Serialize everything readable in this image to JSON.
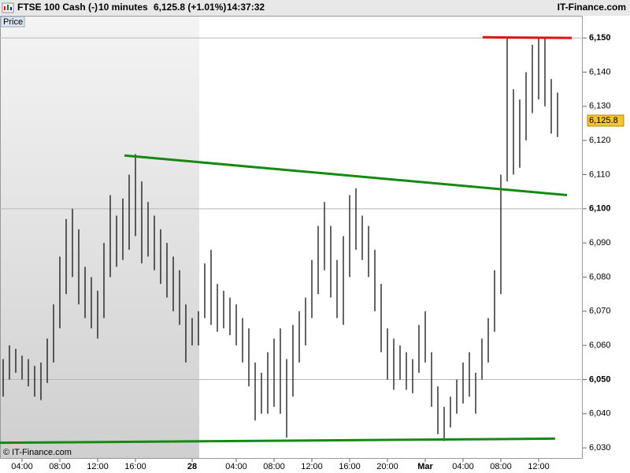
{
  "chart_data": {
    "type": "ohlc",
    "title": "FTSE 100 Cash (-)",
    "interval": "10 minutes",
    "change": "6,125.8 (+1.01%)",
    "time": "14:37:32",
    "source": "IT-Finance.com",
    "y_label": "Price",
    "copyright": "© IT-Finance.com",
    "color": "#000000",
    "categories": [
      null,
      null,
      null,
      "04:00",
      null,
      null,
      null,
      null,
      null,
      "08:00",
      null,
      null,
      null,
      null,
      null,
      "12:00",
      null,
      null,
      null,
      null,
      null,
      "16:00",
      null,
      null,
      null,
      null,
      null,
      null,
      null,
      null,
      "28",
      null,
      null,
      null,
      null,
      null,
      null,
      "04:00",
      null,
      null,
      null,
      null,
      null,
      "08:00",
      null,
      null,
      null,
      null,
      null,
      "12:00",
      null,
      null,
      null,
      null,
      null,
      "16:00",
      null,
      null,
      null,
      null,
      null,
      "20:00",
      null,
      null,
      null,
      null,
      null,
      "Mar",
      null,
      null,
      null,
      null,
      null,
      "04:00",
      null,
      null,
      null,
      null,
      null,
      "08:00",
      null,
      null,
      null,
      null,
      null,
      "12:00",
      null,
      null,
      null
    ],
    "high": [
      6056,
      6060,
      6059,
      6057,
      6056,
      6054,
      6055,
      6062,
      6072,
      6086,
      6097,
      6100,
      6094,
      6083,
      6080,
      6076,
      6090,
      6104,
      6098,
      6103,
      6110,
      6116,
      6108,
      6102,
      6098,
      6094,
      6090,
      6086,
      6082,
      6072,
      6068,
      6070,
      6084,
      6088,
      6078,
      6076,
      6074,
      6072,
      6068,
      6065,
      6055,
      6052,
      6058,
      6062,
      6065,
      6056,
      6066,
      6070,
      6074,
      6085,
      6095,
      6102,
      6095,
      6085,
      6092,
      6104,
      6106,
      6098,
      6095,
      6088,
      6078,
      6065,
      6062,
      6060,
      6058,
      6056,
      6066,
      6070,
      6058,
      6048,
      6042,
      6045,
      6050,
      6055,
      6058,
      6052,
      6062,
      6068,
      6082,
      6110,
      6150,
      6135,
      6132,
      6140,
      6148,
      6150,
      6150,
      6138,
      6134
    ],
    "low": [
      6045,
      6050,
      6052,
      6050,
      6048,
      6045,
      6044,
      6049,
      6055,
      6065,
      6075,
      6080,
      6072,
      6068,
      6065,
      6062,
      6068,
      6080,
      6083,
      6085,
      6088,
      6092,
      6084,
      6086,
      6082,
      6078,
      6074,
      6070,
      6066,
      6055,
      6060,
      6060,
      6068,
      6066,
      6064,
      6065,
      6063,
      6060,
      6055,
      6048,
      6038,
      6040,
      6040,
      6042,
      6040,
      6033,
      6045,
      6055,
      6060,
      6068,
      6075,
      6082,
      6074,
      6068,
      6066,
      6080,
      6088,
      6085,
      6080,
      6070,
      6058,
      6050,
      6047,
      6050,
      6047,
      6046,
      6052,
      6055,
      6042,
      6034,
      6032,
      6036,
      6040,
      6043,
      6045,
      6040,
      6050,
      6055,
      6064,
      6075,
      6108,
      6110,
      6112,
      6120,
      6128,
      6132,
      6130,
      6122,
      6121
    ],
    "trendlines": [
      {
        "color": "#138a13",
        "x0": 19.25,
        "y0": 6115.6,
        "x1": 89.5,
        "y1": 6104
      },
      {
        "color": "#138a13",
        "x0": -0.5,
        "y0": 6031.5,
        "x1": 87.6,
        "y1": 6032.7
      },
      {
        "color": "#e01010",
        "x0": 76.1,
        "y0": 6150.2,
        "x1": 90.25,
        "y1": 6150
      }
    ],
    "last_price": {
      "value": 6125.8,
      "label": "6,125.8"
    },
    "ylim": [
      6026.8,
      6156.5
    ],
    "yticks": [
      {
        "value": 6030,
        "label": "6,030"
      },
      {
        "value": 6040,
        "label": "6,040"
      },
      {
        "value": 6050,
        "label": "6,050"
      },
      {
        "value": 6060,
        "label": "6,060"
      },
      {
        "value": 6070,
        "label": "6,070"
      },
      {
        "value": 6080,
        "label": "6,080"
      },
      {
        "value": 6090,
        "label": "6,090"
      },
      {
        "value": 6100,
        "label": "6,100"
      },
      {
        "value": 6110,
        "label": "6,110"
      },
      {
        "value": 6120,
        "label": "6,120"
      },
      {
        "value": 6130,
        "label": "6,130"
      },
      {
        "value": 6140,
        "label": "6,140"
      },
      {
        "value": 6150,
        "label": "6,150"
      }
    ],
    "grid": true
  }
}
